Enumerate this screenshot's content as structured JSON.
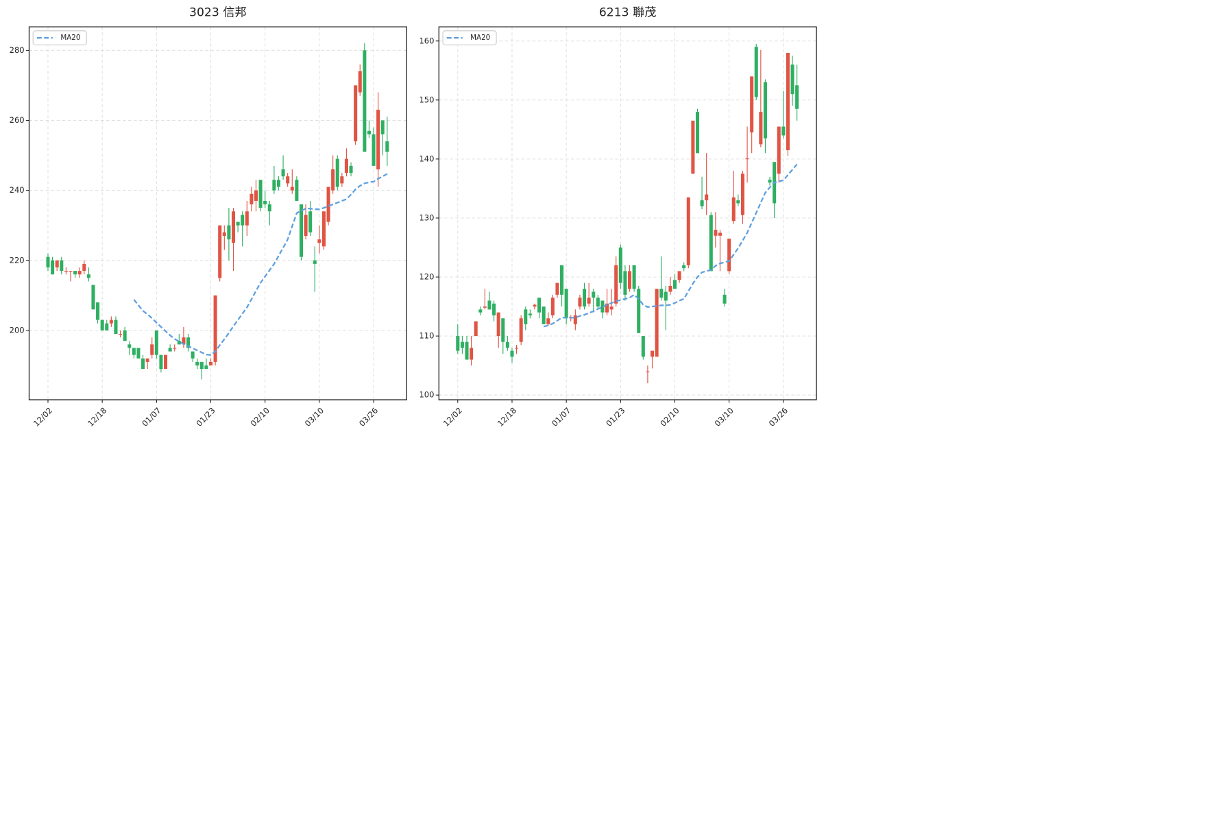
{
  "chart_data": [
    {
      "type": "candlestick",
      "title": "3023 信邦",
      "categories": [
        "12/02",
        null,
        null,
        null,
        null,
        null,
        null,
        null,
        null,
        null,
        null,
        null,
        "12/18",
        null,
        null,
        null,
        null,
        null,
        null,
        null,
        null,
        null,
        null,
        null,
        "01/07",
        null,
        null,
        null,
        null,
        null,
        null,
        null,
        null,
        null,
        null,
        null,
        "01/23",
        null,
        null,
        null,
        null,
        null,
        null,
        null,
        null,
        null,
        null,
        null,
        "02/10",
        null,
        null,
        null,
        null,
        null,
        null,
        null,
        null,
        null,
        null,
        null,
        "03/10",
        null,
        null,
        null,
        null,
        null,
        null,
        null,
        null,
        null,
        null,
        null,
        "03/26",
        null,
        null,
        null
      ],
      "open": [
        221,
        220,
        218,
        220,
        217,
        217,
        217,
        216,
        217,
        216,
        213,
        208,
        203,
        202,
        202,
        203,
        199,
        200,
        196,
        195,
        195,
        192,
        191,
        193,
        200,
        193,
        189,
        195,
        195,
        197,
        196,
        198,
        194,
        191,
        191,
        190,
        190,
        191,
        215,
        227,
        230,
        225,
        231,
        233,
        230,
        236,
        237,
        243,
        237,
        236,
        243,
        243,
        246,
        242,
        240,
        243,
        236,
        227,
        234,
        220,
        225,
        224,
        231,
        240,
        249,
        242,
        245,
        247,
        254,
        268,
        280,
        257,
        256,
        246,
        260,
        254
      ],
      "high": [
        222,
        221,
        220,
        221,
        218,
        217,
        217,
        218,
        220,
        218,
        213,
        208,
        203,
        203,
        204,
        204,
        200,
        201,
        197,
        195,
        195,
        193,
        192,
        198,
        200,
        193,
        193,
        196,
        196,
        199,
        201,
        199,
        194,
        192,
        191,
        192,
        192,
        210,
        230,
        230,
        235,
        235,
        231,
        234,
        237,
        241,
        243,
        243,
        240,
        237,
        247,
        244,
        250,
        245,
        246,
        244,
        236,
        236,
        237,
        224,
        230,
        234,
        241,
        250,
        250,
        245,
        252,
        248,
        270,
        276,
        282,
        260,
        258,
        268,
        260,
        261
      ],
      "low": [
        217,
        216,
        217,
        216,
        216,
        214,
        215,
        215,
        216,
        214,
        206,
        202,
        200,
        200,
        201,
        199,
        198,
        197,
        193,
        192,
        192,
        189,
        189,
        192,
        192,
        188,
        189,
        194,
        194,
        196,
        195,
        194,
        191,
        189,
        186,
        189,
        190,
        190,
        214,
        223,
        220,
        217,
        228,
        224,
        227,
        234,
        234,
        234,
        235,
        230,
        239,
        240,
        243,
        241,
        239,
        237,
        220,
        226,
        227,
        211,
        222,
        223,
        230,
        239,
        240,
        241,
        244,
        244,
        253,
        267,
        251,
        255,
        247,
        241,
        250,
        247
      ],
      "close": [
        218,
        216,
        220,
        217,
        217,
        217,
        216,
        217,
        219,
        215,
        206,
        203,
        200,
        200,
        203,
        199,
        199,
        197,
        195,
        193,
        192,
        189,
        192,
        196,
        193,
        189,
        193,
        194,
        195,
        196,
        198,
        195,
        192,
        190,
        189,
        189,
        191,
        210,
        230,
        228,
        226,
        234,
        230,
        230,
        234,
        239,
        240,
        235,
        236,
        234,
        240,
        241,
        244,
        244,
        241,
        237,
        221,
        233,
        228,
        219,
        226,
        234,
        241,
        246,
        241,
        244,
        249,
        245,
        270,
        274,
        251,
        256,
        247,
        263,
        256,
        251
      ],
      "up_color": "#e05444",
      "down_color": "#2eaf62",
      "series": [
        {
          "name": "MA20",
          "color": "#5fa0e0",
          "values": [
            null,
            null,
            null,
            null,
            null,
            null,
            null,
            null,
            null,
            null,
            null,
            null,
            null,
            null,
            null,
            null,
            null,
            null,
            null,
            208.8,
            207.2,
            205.6,
            204.6,
            203.5,
            202.2,
            201.0,
            199.8,
            198.6,
            197.6,
            196.8,
            196.1,
            195.5,
            194.9,
            194.3,
            193.7,
            193.1,
            193.0,
            194.0,
            195.8,
            197.5,
            199.3,
            201.2,
            203.0,
            204.8,
            206.6,
            208.9,
            211.3,
            213.6,
            215.4,
            217.2,
            219.0,
            221.3,
            223.6,
            226.0,
            229.8,
            233.5,
            234.2,
            234.8,
            234.8,
            234.6,
            234.6,
            235.0,
            235.5,
            236.0,
            236.5,
            237.0,
            237.5,
            238.8,
            240.3,
            241.3,
            242.0,
            242.3,
            242.5,
            243.3,
            244.0,
            244.7
          ]
        }
      ],
      "ylim": [
        180.2,
        286.7
      ],
      "yticks": [
        200,
        220,
        240,
        260,
        280
      ],
      "grid": true,
      "legend": "upper left"
    },
    {
      "type": "candlestick",
      "title": "6213 聯茂",
      "categories": [
        "12/02",
        null,
        null,
        null,
        null,
        null,
        null,
        null,
        null,
        null,
        null,
        null,
        "12/18",
        null,
        null,
        null,
        null,
        null,
        null,
        null,
        null,
        null,
        null,
        null,
        "01/07",
        null,
        null,
        null,
        null,
        null,
        null,
        null,
        null,
        null,
        null,
        null,
        "01/23",
        null,
        null,
        null,
        null,
        null,
        null,
        null,
        null,
        null,
        null,
        null,
        "02/10",
        null,
        null,
        null,
        null,
        null,
        null,
        null,
        null,
        null,
        null,
        null,
        "03/10",
        null,
        null,
        null,
        null,
        null,
        null,
        null,
        null,
        null,
        null,
        null,
        "03/26",
        null,
        null,
        null
      ],
      "open": [
        110,
        109,
        109,
        106,
        110,
        114.5,
        114.8,
        116,
        115.5,
        110,
        113,
        109,
        107.5,
        108,
        109,
        114.5,
        113.8,
        115,
        116.5,
        115,
        112,
        113.5,
        117,
        122,
        118,
        113,
        112,
        115,
        118,
        115.5,
        117.5,
        116.5,
        116,
        114,
        114.5,
        115.5,
        125,
        121,
        118,
        122,
        118,
        110,
        104,
        106.5,
        106.5,
        118,
        117.5,
        117.5,
        119.5,
        119.5,
        122,
        122,
        137.5,
        148,
        133,
        133,
        130.5,
        127,
        127,
        117,
        121,
        129.5,
        133,
        130.5,
        140,
        144.5,
        159,
        142.5,
        153,
        136.5,
        139.5,
        137.5,
        145.5,
        141.5,
        156,
        152.5
      ],
      "high": [
        112,
        110,
        110,
        110,
        112.5,
        115,
        118,
        117.5,
        116,
        114,
        113,
        110,
        108,
        108.5,
        113.5,
        115,
        114.5,
        115.5,
        116.5,
        115,
        114,
        117,
        119,
        122,
        118,
        113.5,
        114.5,
        117,
        119,
        119,
        118,
        117,
        116,
        118,
        118,
        123.5,
        125.5,
        122,
        122,
        122,
        118.5,
        110,
        105,
        107.5,
        118,
        123.5,
        118.5,
        120,
        120.5,
        121,
        122.5,
        133.5,
        146.5,
        148.5,
        137,
        141,
        131,
        131,
        128,
        118,
        126.5,
        138,
        134,
        138,
        145.5,
        154,
        159.5,
        158.5,
        153.5,
        137,
        139.5,
        145.5,
        151.5,
        158,
        157.5,
        156
      ],
      "low": [
        107,
        107,
        106,
        105,
        110,
        113.5,
        114.5,
        114.5,
        112.5,
        108,
        107,
        107.5,
        105.5,
        107,
        108.5,
        111,
        113,
        114.5,
        113,
        112,
        111.8,
        113,
        116.5,
        115,
        112,
        112.5,
        111,
        114.5,
        114.5,
        115,
        114,
        114.5,
        113,
        113.5,
        113.5,
        115,
        118,
        116,
        117.5,
        117.5,
        110.5,
        106,
        102,
        104.5,
        106.5,
        116,
        111,
        117,
        118,
        119,
        121,
        121.5,
        137.5,
        141,
        131.5,
        130.5,
        121,
        125,
        121,
        115,
        120.5,
        129,
        132,
        129,
        136,
        141,
        150,
        142,
        141,
        135.5,
        130,
        136,
        143.5,
        140.5,
        149,
        146.5
      ],
      "close": [
        107.5,
        108,
        106,
        108,
        112.5,
        114,
        115,
        114.5,
        113.5,
        114,
        109,
        108,
        106.5,
        108,
        113,
        112,
        113.5,
        115.3,
        114,
        112,
        113,
        116.5,
        119,
        117,
        113,
        113.2,
        113.5,
        116.5,
        115,
        116.5,
        116.5,
        115,
        114,
        115.5,
        115,
        122,
        119,
        117,
        121,
        118,
        110.5,
        106.5,
        104,
        107.5,
        118,
        116.5,
        116,
        118.5,
        118,
        121,
        121.5,
        133.5,
        146.5,
        141,
        132,
        134,
        121,
        128,
        127.5,
        115.5,
        126.5,
        133.5,
        132.5,
        137.5,
        140.1,
        154,
        150.5,
        148,
        143.5,
        136,
        132.5,
        145.5,
        144,
        158,
        151,
        148.5
      ],
      "up_color": "#e05444",
      "down_color": "#2eaf62",
      "series": [
        {
          "name": "MA20",
          "color": "#5fa0e0",
          "values": [
            null,
            null,
            null,
            null,
            null,
            null,
            null,
            null,
            null,
            null,
            null,
            null,
            null,
            null,
            null,
            null,
            null,
            null,
            null,
            111.6,
            111.8,
            112.1,
            112.6,
            113.1,
            113.1,
            113.1,
            113.1,
            113.4,
            113.6,
            113.9,
            114.2,
            114.6,
            114.9,
            115.3,
            115.6,
            115.9,
            116.1,
            116.3,
            116.5,
            117.0,
            116.3,
            115.3,
            114.9,
            115.0,
            115.1,
            115.2,
            115.2,
            115.3,
            115.6,
            116.0,
            116.3,
            117.6,
            118.9,
            120.0,
            120.8,
            121.0,
            121.2,
            121.9,
            122.3,
            122.5,
            122.7,
            123.8,
            124.9,
            126.2,
            127.5,
            129.2,
            130.9,
            132.6,
            134.3,
            135.2,
            136.0,
            136.2,
            136.4,
            137.3,
            138.2,
            139.1
          ]
        }
      ],
      "ylim": [
        99.2,
        162.4
      ],
      "yticks": [
        100,
        110,
        120,
        130,
        140,
        150,
        160
      ],
      "grid": true,
      "legend": "upper left"
    }
  ]
}
